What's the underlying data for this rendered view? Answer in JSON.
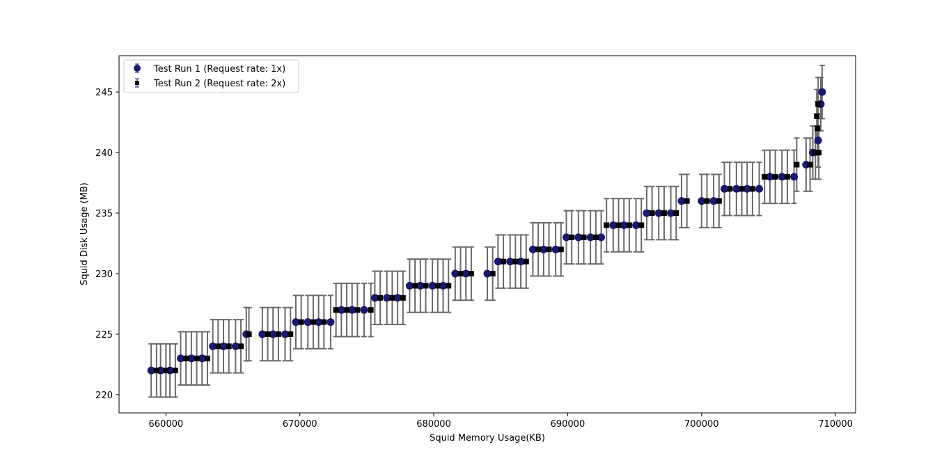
{
  "chart_data": {
    "type": "scatter",
    "title": "",
    "xlabel": "Squid Memory Usage(KB)",
    "ylabel": "Squid Disk Usage (MB)",
    "xlim": [
      656500,
      711500
    ],
    "ylim": [
      218.5,
      248.0
    ],
    "xticks": [
      660000,
      670000,
      680000,
      690000,
      700000,
      710000
    ],
    "yticks": [
      220,
      225,
      230,
      235,
      240,
      245
    ],
    "grid": false,
    "legend": "upper-left",
    "error_bar": 2.2,
    "colors": {
      "series1": "#191970",
      "series2": "#000000",
      "error_bar": "#696969",
      "frame": "#000000"
    },
    "series": [
      {
        "name": "Test Run 1 (Request rate: 1x)",
        "marker": "circle",
        "points": [
          [
            658900,
            222
          ],
          [
            659600,
            222
          ],
          [
            660300,
            222
          ],
          [
            661100,
            223
          ],
          [
            661900,
            223
          ],
          [
            662700,
            223
          ],
          [
            663500,
            224
          ],
          [
            664300,
            224
          ],
          [
            665200,
            224
          ],
          [
            666000,
            225
          ],
          [
            667200,
            225
          ],
          [
            668000,
            225
          ],
          [
            668900,
            225
          ],
          [
            669700,
            226
          ],
          [
            670600,
            226
          ],
          [
            671400,
            226
          ],
          [
            672300,
            226
          ],
          [
            673100,
            227
          ],
          [
            673900,
            227
          ],
          [
            674800,
            227
          ],
          [
            675600,
            228
          ],
          [
            676500,
            228
          ],
          [
            677300,
            228
          ],
          [
            678200,
            229
          ],
          [
            679000,
            229
          ],
          [
            679900,
            229
          ],
          [
            680700,
            229
          ],
          [
            681600,
            230
          ],
          [
            682400,
            230
          ],
          [
            684000,
            230
          ],
          [
            684800,
            231
          ],
          [
            685700,
            231
          ],
          [
            686500,
            231
          ],
          [
            687400,
            232
          ],
          [
            688200,
            232
          ],
          [
            689100,
            232
          ],
          [
            689900,
            233
          ],
          [
            690800,
            233
          ],
          [
            691700,
            233
          ],
          [
            692500,
            233
          ],
          [
            693400,
            234
          ],
          [
            694200,
            234
          ],
          [
            695100,
            234
          ],
          [
            695900,
            235
          ],
          [
            696800,
            235
          ],
          [
            697700,
            235
          ],
          [
            698500,
            236
          ],
          [
            700000,
            236
          ],
          [
            700900,
            236
          ],
          [
            701700,
            237
          ],
          [
            702600,
            237
          ],
          [
            703400,
            237
          ],
          [
            704300,
            237
          ],
          [
            705100,
            238
          ],
          [
            706000,
            238
          ],
          [
            706900,
            238
          ],
          [
            707800,
            239
          ],
          [
            708300,
            240
          ],
          [
            708700,
            241
          ],
          [
            708900,
            244
          ],
          [
            709000,
            245
          ]
        ]
      },
      {
        "name": "Test Run 2 (Request rate: 2x)",
        "marker": "square",
        "points": [
          [
            659300,
            222
          ],
          [
            660000,
            222
          ],
          [
            660700,
            222
          ],
          [
            661500,
            223
          ],
          [
            662300,
            223
          ],
          [
            663100,
            223
          ],
          [
            663900,
            224
          ],
          [
            664700,
            224
          ],
          [
            665600,
            224
          ],
          [
            666200,
            225
          ],
          [
            667600,
            225
          ],
          [
            668400,
            225
          ],
          [
            669300,
            225
          ],
          [
            670100,
            226
          ],
          [
            671000,
            226
          ],
          [
            671800,
            226
          ],
          [
            672700,
            227
          ],
          [
            673500,
            227
          ],
          [
            674300,
            227
          ],
          [
            675300,
            227
          ],
          [
            676000,
            228
          ],
          [
            676900,
            228
          ],
          [
            677700,
            228
          ],
          [
            678600,
            229
          ],
          [
            679400,
            229
          ],
          [
            680300,
            229
          ],
          [
            681100,
            229
          ],
          [
            682000,
            230
          ],
          [
            682800,
            230
          ],
          [
            684400,
            230
          ],
          [
            685200,
            231
          ],
          [
            686100,
            231
          ],
          [
            686900,
            231
          ],
          [
            687800,
            232
          ],
          [
            688600,
            232
          ],
          [
            689500,
            232
          ],
          [
            690300,
            233
          ],
          [
            691200,
            233
          ],
          [
            692100,
            233
          ],
          [
            692900,
            234
          ],
          [
            693800,
            234
          ],
          [
            694600,
            234
          ],
          [
            695500,
            234
          ],
          [
            696300,
            235
          ],
          [
            697200,
            235
          ],
          [
            698100,
            235
          ],
          [
            698900,
            236
          ],
          [
            700400,
            236
          ],
          [
            701300,
            236
          ],
          [
            702100,
            237
          ],
          [
            703000,
            237
          ],
          [
            703800,
            237
          ],
          [
            704700,
            238
          ],
          [
            705500,
            238
          ],
          [
            706400,
            238
          ],
          [
            707100,
            239
          ],
          [
            708100,
            239
          ],
          [
            708500,
            240
          ],
          [
            708600,
            243
          ],
          [
            708650,
            242
          ],
          [
            708700,
            244
          ],
          [
            708750,
            240
          ]
        ]
      }
    ]
  }
}
